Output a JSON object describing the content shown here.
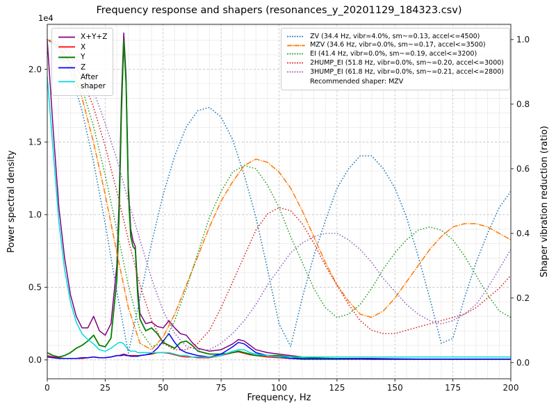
{
  "chart_data": {
    "type": "line",
    "title": "Frequency response and shapers (resonances_y_20201129_184323.csv)",
    "xlabel": "Frequency, Hz",
    "ylabel": "Power spectral density",
    "y2label": "Shaper vibration reduction (ratio)",
    "y_left_offset": "1e4",
    "legend_note": "Recommended shaper: MZV",
    "x_range": [
      0,
      200
    ],
    "y_left_range": [
      -0.13,
      2.31
    ],
    "y_right_range": [
      -0.05,
      1.047
    ],
    "y_left_unit_scale": 10000,
    "x_minor_step": 5,
    "y_left_minor_step": 0.1,
    "grid": "major+minor",
    "x_ticks": [
      {
        "v": 0,
        "label": "0"
      },
      {
        "v": 25,
        "label": "25"
      },
      {
        "v": 50,
        "label": "50"
      },
      {
        "v": 75,
        "label": "75"
      },
      {
        "v": 100,
        "label": "100"
      },
      {
        "v": 125,
        "label": "125"
      },
      {
        "v": 150,
        "label": "150"
      },
      {
        "v": 175,
        "label": "175"
      },
      {
        "v": 200,
        "label": "200"
      }
    ],
    "y_left_ticks": [
      {
        "v": 0,
        "label": "0.0"
      },
      {
        "v": 0.5,
        "label": "0.5"
      },
      {
        "v": 1.0,
        "label": "1.0"
      },
      {
        "v": 1.5,
        "label": "1.5"
      },
      {
        "v": 2.0,
        "label": "2.0"
      }
    ],
    "y_right_ticks": [
      {
        "v": 0,
        "label": "0.0"
      },
      {
        "v": 0.2,
        "label": "0.2"
      },
      {
        "v": 0.4,
        "label": "0.4"
      },
      {
        "v": 0.6,
        "label": "0.6"
      },
      {
        "v": 0.8,
        "label": "0.8"
      },
      {
        "v": 1.0,
        "label": "1.0"
      }
    ],
    "series": [
      {
        "name": "X+Y+Z",
        "axis": "left",
        "legend": "left",
        "label": "X+Y+Z",
        "color": "#800080",
        "style": "solid",
        "width": 1.5,
        "x": [
          0,
          2.5,
          5,
          7.5,
          10,
          12.5,
          15,
          17.5,
          20,
          22.5,
          25,
          27.5,
          30,
          31,
          32,
          33,
          34,
          35,
          36,
          37,
          38,
          39,
          40,
          42.5,
          45,
          47.5,
          50,
          52.5,
          55,
          57.5,
          60,
          62.5,
          65,
          70,
          75,
          80,
          82.5,
          85,
          87.5,
          90,
          95,
          100,
          105,
          110,
          120,
          140,
          160,
          180,
          200
        ],
        "y": [
          2.2,
          1.6,
          1.05,
          0.7,
          0.45,
          0.3,
          0.22,
          0.22,
          0.3,
          0.2,
          0.17,
          0.25,
          0.65,
          1.1,
          1.8,
          2.25,
          1.95,
          1.2,
          0.9,
          0.82,
          0.78,
          0.5,
          0.32,
          0.25,
          0.26,
          0.23,
          0.22,
          0.27,
          0.22,
          0.18,
          0.17,
          0.12,
          0.08,
          0.06,
          0.07,
          0.11,
          0.14,
          0.13,
          0.1,
          0.07,
          0.05,
          0.04,
          0.03,
          0.02,
          0.01,
          0.01,
          0.005,
          0.005,
          0.005
        ]
      },
      {
        "name": "X",
        "axis": "left",
        "legend": "left",
        "label": "X",
        "color": "#ff0000",
        "style": "solid",
        "width": 1.5,
        "x": [
          0,
          2.5,
          5,
          7.5,
          10,
          12.5,
          15,
          17.5,
          20,
          22.5,
          25,
          27.5,
          30,
          31,
          32,
          33,
          34,
          35,
          36,
          37,
          38,
          39,
          40,
          42.5,
          45,
          47.5,
          50,
          52.5,
          55,
          57.5,
          60,
          62.5,
          65,
          70,
          75,
          80,
          82.5,
          85,
          87.5,
          90,
          95,
          100,
          105,
          110,
          120,
          140,
          160,
          180,
          200
        ],
        "y": [
          0.03,
          0.02,
          0.015,
          0.01,
          0.01,
          0.01,
          0.01,
          0.015,
          0.02,
          0.015,
          0.015,
          0.02,
          0.03,
          0.03,
          0.035,
          0.04,
          0.035,
          0.03,
          0.03,
          0.03,
          0.03,
          0.03,
          0.03,
          0.035,
          0.04,
          0.05,
          0.05,
          0.045,
          0.035,
          0.025,
          0.02,
          0.02,
          0.015,
          0.015,
          0.03,
          0.05,
          0.055,
          0.045,
          0.035,
          0.03,
          0.02,
          0.015,
          0.01,
          0.01,
          0.005,
          0.005,
          0.005,
          0.005,
          0.005
        ]
      },
      {
        "name": "Y",
        "axis": "left",
        "legend": "left",
        "label": "Y",
        "color": "#008000",
        "style": "solid",
        "width": 1.8,
        "x": [
          0,
          2.5,
          5,
          7.5,
          10,
          12.5,
          15,
          17.5,
          20,
          22.5,
          25,
          27.5,
          30,
          31,
          32,
          33,
          34,
          35,
          36,
          37,
          38,
          39,
          40,
          42.5,
          45,
          47.5,
          50,
          52.5,
          55,
          57.5,
          60,
          62.5,
          65,
          70,
          75,
          80,
          82.5,
          85,
          87.5,
          90,
          95,
          100,
          105,
          110,
          120,
          140,
          160,
          180,
          200
        ],
        "y": [
          0.05,
          0.03,
          0.02,
          0.03,
          0.05,
          0.08,
          0.1,
          0.13,
          0.17,
          0.1,
          0.09,
          0.15,
          0.55,
          1.0,
          1.7,
          2.2,
          1.9,
          1.15,
          0.85,
          0.78,
          0.76,
          0.45,
          0.28,
          0.2,
          0.22,
          0.18,
          0.12,
          0.1,
          0.08,
          0.12,
          0.13,
          0.1,
          0.06,
          0.04,
          0.04,
          0.05,
          0.06,
          0.05,
          0.04,
          0.03,
          0.03,
          0.03,
          0.02,
          0.01,
          0.01,
          0.005,
          0.005,
          0.005,
          0.005
        ]
      },
      {
        "name": "Z",
        "axis": "left",
        "legend": "left",
        "label": "Z",
        "color": "#0000ff",
        "style": "solid",
        "width": 1.5,
        "x": [
          0,
          2.5,
          5,
          7.5,
          10,
          12.5,
          15,
          17.5,
          20,
          22.5,
          25,
          27.5,
          30,
          31,
          32,
          33,
          34,
          35,
          36,
          37,
          38,
          39,
          40,
          42.5,
          45,
          47.5,
          50,
          52.5,
          55,
          57.5,
          60,
          62.5,
          65,
          70,
          75,
          80,
          82.5,
          85,
          87.5,
          90,
          95,
          100,
          105,
          110,
          120,
          140,
          160,
          180,
          200
        ],
        "y": [
          0.02,
          0.015,
          0.01,
          0.01,
          0.01,
          0.01,
          0.015,
          0.015,
          0.02,
          0.015,
          0.015,
          0.02,
          0.03,
          0.03,
          0.03,
          0.035,
          0.03,
          0.03,
          0.025,
          0.025,
          0.025,
          0.025,
          0.03,
          0.035,
          0.045,
          0.08,
          0.13,
          0.18,
          0.12,
          0.07,
          0.05,
          0.04,
          0.03,
          0.02,
          0.04,
          0.09,
          0.12,
          0.11,
          0.08,
          0.05,
          0.03,
          0.02,
          0.01,
          0.005,
          0.005,
          0.005,
          0.005,
          0.005,
          0.005
        ]
      },
      {
        "name": "After-shaper",
        "axis": "left",
        "legend": "left",
        "label": "After\nshaper",
        "color": "#00dcdc",
        "style": "solid",
        "width": 1.5,
        "x": [
          0,
          2.5,
          5,
          7.5,
          10,
          12.5,
          15,
          17.5,
          20,
          22.5,
          25,
          27.5,
          30,
          31,
          32,
          33,
          34,
          35,
          36,
          37,
          38,
          39,
          40,
          42.5,
          45,
          47.5,
          50,
          52.5,
          55,
          57.5,
          60,
          62.5,
          65,
          70,
          75,
          80,
          82.5,
          85,
          87.5,
          90,
          95,
          100,
          105,
          110,
          120,
          140,
          160,
          180,
          200
        ],
        "y": [
          1.95,
          1.45,
          0.95,
          0.62,
          0.4,
          0.26,
          0.18,
          0.14,
          0.11,
          0.07,
          0.06,
          0.08,
          0.11,
          0.12,
          0.12,
          0.11,
          0.09,
          0.07,
          0.06,
          0.06,
          0.06,
          0.05,
          0.05,
          0.05,
          0.05,
          0.05,
          0.05,
          0.05,
          0.04,
          0.03,
          0.03,
          0.02,
          0.02,
          0.02,
          0.03,
          0.06,
          0.07,
          0.07,
          0.05,
          0.04,
          0.03,
          0.02,
          0.02,
          0.02,
          0.02,
          0.02,
          0.02,
          0.02,
          0.02
        ]
      },
      {
        "name": "ZV",
        "axis": "right",
        "legend": "right",
        "label": "ZV (34.4 Hz, vibr=4.0%, sm~=0.13, accel<=4500)",
        "color": "#1f77b4",
        "style": "dotted",
        "width": 1.7,
        "x": [
          0,
          5,
          10,
          15,
          20,
          25,
          30,
          35,
          40,
          45,
          50,
          55,
          60,
          65,
          70,
          75,
          80,
          85,
          90,
          95,
          100,
          105,
          110,
          115,
          120,
          125,
          130,
          135,
          140,
          145,
          150,
          155,
          160,
          165,
          170,
          175,
          180,
          185,
          190,
          195,
          200
        ],
        "y": [
          1.0,
          0.97,
          0.9,
          0.78,
          0.62,
          0.43,
          0.22,
          0.03,
          0.2,
          0.37,
          0.52,
          0.64,
          0.73,
          0.78,
          0.79,
          0.76,
          0.69,
          0.58,
          0.45,
          0.29,
          0.12,
          0.05,
          0.2,
          0.33,
          0.44,
          0.54,
          0.6,
          0.64,
          0.64,
          0.6,
          0.54,
          0.45,
          0.33,
          0.2,
          0.06,
          0.075,
          0.2,
          0.31,
          0.4,
          0.48,
          0.53
        ]
      },
      {
        "name": "MZV",
        "axis": "right",
        "legend": "right",
        "label": "MZV (34.6 Hz, vibr=0.0%, sm~=0.17, accel<=3500)",
        "color": "#ff7f0e",
        "style": "dashdot",
        "width": 1.6,
        "x": [
          0,
          5,
          10,
          15,
          20,
          25,
          30,
          35,
          40,
          45,
          50,
          55,
          60,
          65,
          70,
          75,
          80,
          85,
          90,
          95,
          100,
          105,
          110,
          115,
          120,
          125,
          130,
          135,
          140,
          145,
          150,
          155,
          160,
          165,
          170,
          175,
          180,
          185,
          190,
          195,
          200
        ],
        "y": [
          1.0,
          0.98,
          0.92,
          0.82,
          0.68,
          0.52,
          0.34,
          0.17,
          0.06,
          0.04,
          0.08,
          0.15,
          0.24,
          0.33,
          0.42,
          0.5,
          0.56,
          0.61,
          0.63,
          0.62,
          0.59,
          0.54,
          0.47,
          0.39,
          0.31,
          0.24,
          0.19,
          0.15,
          0.14,
          0.16,
          0.2,
          0.25,
          0.3,
          0.35,
          0.39,
          0.42,
          0.43,
          0.43,
          0.42,
          0.4,
          0.38
        ]
      },
      {
        "name": "EI",
        "axis": "right",
        "legend": "right",
        "label": "EI (41.4 Hz, vibr=0.0%, sm~=0.19, accel<=3200)",
        "color": "#2ca02c",
        "style": "dotted",
        "width": 1.7,
        "x": [
          0,
          5,
          10,
          15,
          20,
          25,
          30,
          35,
          40,
          45,
          50,
          55,
          60,
          65,
          70,
          75,
          80,
          85,
          90,
          95,
          100,
          105,
          110,
          115,
          120,
          125,
          130,
          135,
          140,
          145,
          150,
          155,
          160,
          165,
          170,
          175,
          180,
          185,
          190,
          195,
          200
        ],
        "y": [
          1.0,
          0.98,
          0.93,
          0.85,
          0.73,
          0.58,
          0.41,
          0.24,
          0.1,
          0.05,
          0.06,
          0.13,
          0.23,
          0.34,
          0.45,
          0.53,
          0.59,
          0.61,
          0.6,
          0.55,
          0.48,
          0.39,
          0.31,
          0.23,
          0.17,
          0.14,
          0.15,
          0.18,
          0.23,
          0.29,
          0.34,
          0.38,
          0.41,
          0.42,
          0.41,
          0.38,
          0.33,
          0.27,
          0.21,
          0.16,
          0.14
        ]
      },
      {
        "name": "2HUMP_EI",
        "axis": "right",
        "legend": "right",
        "label": "2HUMP_EI (51.8 Hz, vibr=0.0%, sm~=0.20, accel<=3000)",
        "color": "#d62728",
        "style": "dotted",
        "width": 1.7,
        "x": [
          0,
          5,
          10,
          15,
          20,
          25,
          30,
          35,
          40,
          45,
          50,
          55,
          60,
          65,
          70,
          75,
          80,
          85,
          90,
          95,
          100,
          105,
          110,
          115,
          120,
          125,
          130,
          135,
          140,
          145,
          150,
          155,
          160,
          165,
          170,
          175,
          180,
          185,
          190,
          195,
          200
        ],
        "y": [
          1.0,
          0.99,
          0.95,
          0.88,
          0.79,
          0.67,
          0.53,
          0.38,
          0.24,
          0.13,
          0.06,
          0.04,
          0.04,
          0.06,
          0.1,
          0.17,
          0.25,
          0.33,
          0.41,
          0.46,
          0.48,
          0.47,
          0.43,
          0.37,
          0.3,
          0.24,
          0.18,
          0.13,
          0.1,
          0.09,
          0.09,
          0.1,
          0.11,
          0.12,
          0.13,
          0.14,
          0.15,
          0.17,
          0.2,
          0.23,
          0.27
        ]
      },
      {
        "name": "3HUMP_EI",
        "axis": "right",
        "legend": "right",
        "label": "3HUMP_EI (61.8 Hz, vibr=0.0%, sm~=0.21, accel<=2800)",
        "color": "#9467bd",
        "style": "dotted",
        "width": 1.7,
        "x": [
          0,
          5,
          10,
          15,
          20,
          25,
          30,
          35,
          40,
          45,
          50,
          55,
          60,
          65,
          70,
          75,
          80,
          85,
          90,
          95,
          100,
          105,
          110,
          115,
          120,
          125,
          130,
          135,
          140,
          145,
          150,
          155,
          160,
          165,
          170,
          175,
          180,
          185,
          190,
          195,
          200
        ],
        "y": [
          1.0,
          0.99,
          0.96,
          0.91,
          0.84,
          0.74,
          0.63,
          0.5,
          0.38,
          0.26,
          0.16,
          0.09,
          0.05,
          0.04,
          0.04,
          0.06,
          0.09,
          0.13,
          0.18,
          0.24,
          0.29,
          0.34,
          0.37,
          0.39,
          0.4,
          0.4,
          0.38,
          0.35,
          0.31,
          0.26,
          0.22,
          0.18,
          0.15,
          0.13,
          0.12,
          0.13,
          0.15,
          0.18,
          0.23,
          0.29,
          0.35
        ]
      }
    ]
  }
}
